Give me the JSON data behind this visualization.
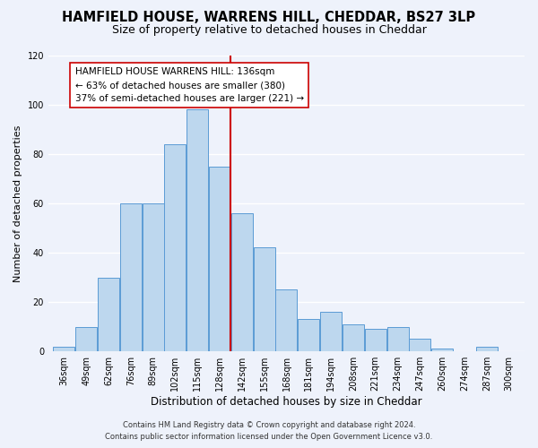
{
  "title": "HAMFIELD HOUSE, WARRENS HILL, CHEDDAR, BS27 3LP",
  "subtitle": "Size of property relative to detached houses in Cheddar",
  "xlabel": "Distribution of detached houses by size in Cheddar",
  "ylabel": "Number of detached properties",
  "bin_labels": [
    "36sqm",
    "49sqm",
    "62sqm",
    "76sqm",
    "89sqm",
    "102sqm",
    "115sqm",
    "128sqm",
    "142sqm",
    "155sqm",
    "168sqm",
    "181sqm",
    "194sqm",
    "208sqm",
    "221sqm",
    "234sqm",
    "247sqm",
    "260sqm",
    "274sqm",
    "287sqm",
    "300sqm"
  ],
  "bar_heights": [
    2,
    10,
    30,
    60,
    60,
    84,
    98,
    75,
    56,
    42,
    25,
    13,
    16,
    11,
    9,
    10,
    5,
    1,
    0,
    2,
    0
  ],
  "bar_color": "#bdd7ee",
  "bar_edge_color": "#5b9bd5",
  "background_color": "#eef2fb",
  "grid_color": "#ffffff",
  "annotation_line_color": "#cc0000",
  "annotation_box_line1": "HAMFIELD HOUSE WARRENS HILL: 136sqm",
  "annotation_box_line2": "← 63% of detached houses are smaller (380)",
  "annotation_box_line3": "37% of semi-detached houses are larger (221) →",
  "annotation_box_edge_color": "#cc0000",
  "footer_line1": "Contains HM Land Registry data © Crown copyright and database right 2024.",
  "footer_line2": "Contains public sector information licensed under the Open Government Licence v3.0.",
  "ylim": [
    0,
    120
  ],
  "title_fontsize": 10.5,
  "subtitle_fontsize": 9,
  "xlabel_fontsize": 8.5,
  "ylabel_fontsize": 8,
  "tick_fontsize": 7,
  "annotation_fontsize": 7.5,
  "footer_fontsize": 6
}
